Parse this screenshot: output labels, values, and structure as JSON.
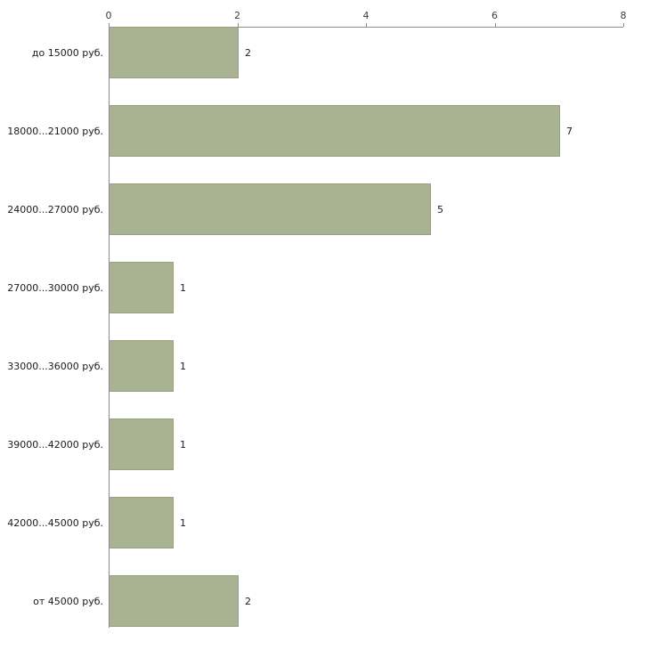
{
  "chart_data": {
    "type": "bar",
    "orientation": "horizontal",
    "title": "",
    "xlabel": "",
    "ylabel": "",
    "categories": [
      "до 15000 руб.",
      "18000...21000 руб.",
      "24000...27000 руб.",
      "27000...30000 руб.",
      "33000...36000 руб.",
      "39000...42000 руб.",
      "42000...45000 руб.",
      "от 45000 руб."
    ],
    "values": [
      2,
      7,
      5,
      1,
      1,
      1,
      1,
      2
    ],
    "value_labels": [
      "2",
      "7",
      "5",
      "1",
      "1",
      "1",
      "1",
      "2"
    ],
    "xlim": [
      0,
      8
    ],
    "x_ticks": [
      "0",
      "2",
      "4",
      "6",
      "8"
    ],
    "x_tick_values": [
      0,
      2,
      4,
      6,
      8
    ],
    "grid": false,
    "legend": null,
    "bar_color": "#a9b293",
    "bar_border_color": "#96a17e",
    "axis_color": "#8c8c8c",
    "label_color": "#1a1a1a"
  }
}
